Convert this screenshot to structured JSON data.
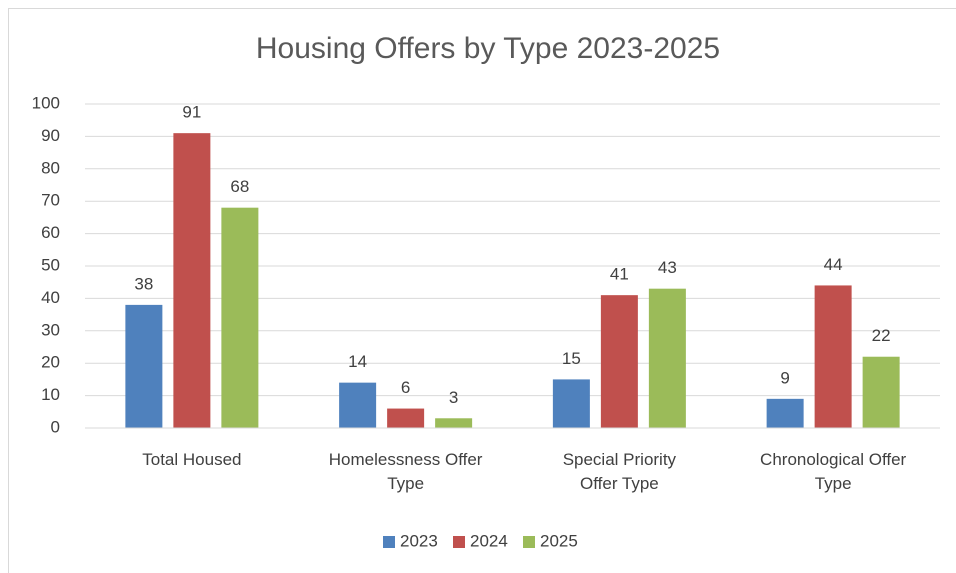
{
  "chart_data": {
    "type": "bar",
    "title": "Housing Offers by Type 2023-2025",
    "categories": [
      "Total Housed",
      "Homelessness Offer Type",
      "Special Priority Offer Type",
      "Chronological Offer Type"
    ],
    "series": [
      {
        "name": "2023",
        "color": "#4f81bd",
        "values": [
          38,
          14,
          15,
          9
        ]
      },
      {
        "name": "2024",
        "color": "#c0504d",
        "values": [
          91,
          6,
          41,
          44
        ]
      },
      {
        "name": "2025",
        "color": "#9bbb59",
        "values": [
          68,
          3,
          43,
          22
        ]
      }
    ],
    "ylim": [
      0,
      100
    ],
    "yticks": [
      0,
      10,
      20,
      30,
      40,
      50,
      60,
      70,
      80,
      90,
      100
    ],
    "grid": true,
    "legend": "bottom"
  }
}
